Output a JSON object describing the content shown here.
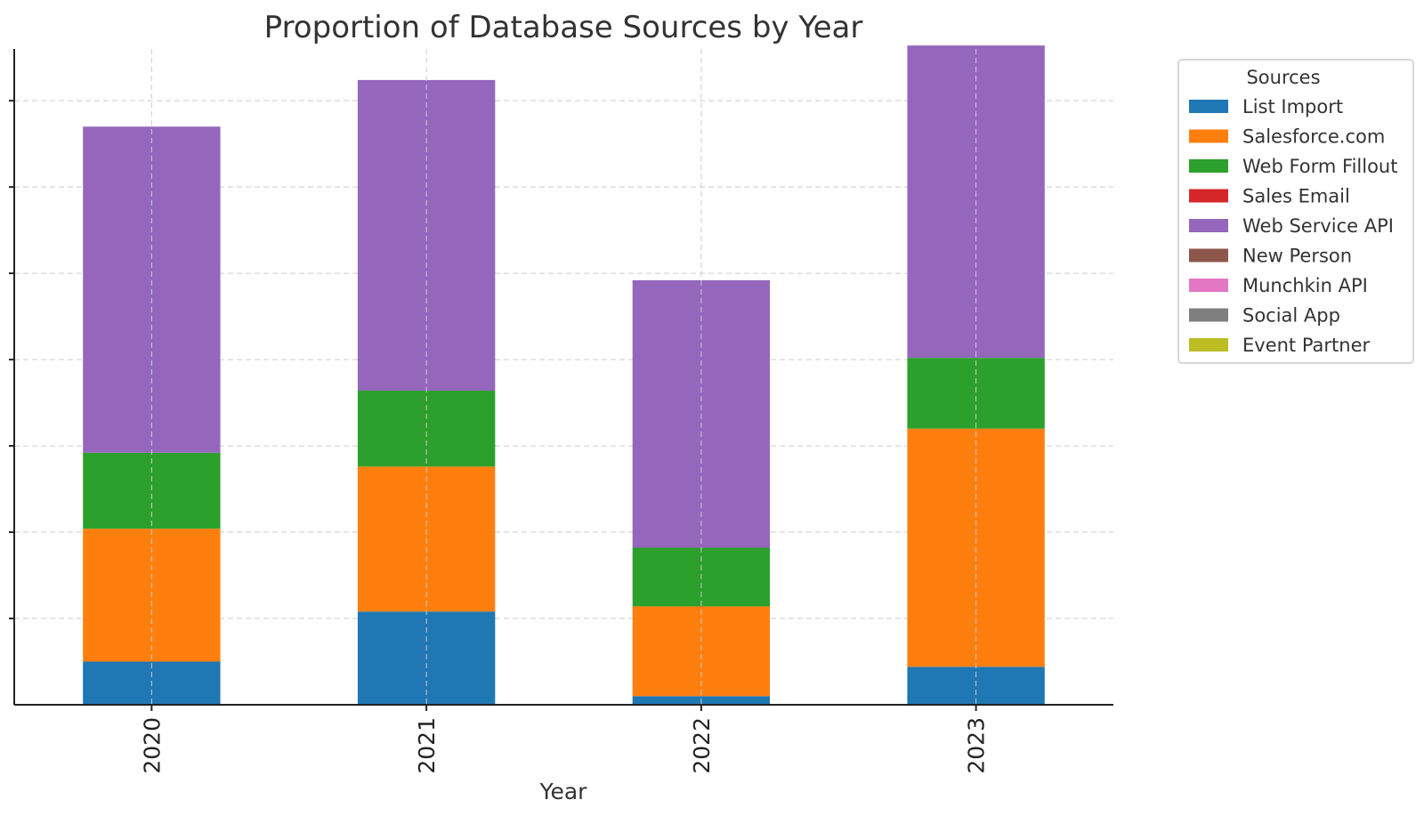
{
  "chart_data": {
    "type": "bar",
    "stacked": true,
    "title": "Proportion of Database Sources by Year",
    "xlabel": "Year",
    "ylabel": "",
    "ylim": [
      0,
      0.38
    ],
    "categories": [
      "2020",
      "2021",
      "2022",
      "2023"
    ],
    "legend_title": "Sources",
    "legend_position": "outside-right",
    "grid": true,
    "series": [
      {
        "name": "List Import",
        "color": "#1f77b4",
        "values": [
          0.025,
          0.054,
          0.005,
          0.022
        ]
      },
      {
        "name": "Salesforce.com",
        "color": "#ff7f0e",
        "values": [
          0.077,
          0.084,
          0.052,
          0.138
        ]
      },
      {
        "name": "Web Form Fillout",
        "color": "#2ca02c",
        "values": [
          0.044,
          0.044,
          0.034,
          0.041
        ]
      },
      {
        "name": "Sales Email",
        "color": "#d62728",
        "values": [
          0,
          0,
          0,
          0
        ]
      },
      {
        "name": "Web Service API",
        "color": "#9467bd",
        "values": [
          0.189,
          0.18,
          0.155,
          0.181
        ]
      },
      {
        "name": "New Person",
        "color": "#8c564b",
        "values": [
          0,
          0,
          0,
          0
        ]
      },
      {
        "name": "Munchkin API",
        "color": "#e377c2",
        "values": [
          0,
          0,
          0,
          0
        ]
      },
      {
        "name": "Social App",
        "color": "#7f7f7f",
        "values": [
          0,
          0,
          0,
          0
        ]
      },
      {
        "name": "Event Partner",
        "color": "#bcbd22",
        "values": [
          0,
          0,
          0,
          0
        ]
      }
    ]
  }
}
